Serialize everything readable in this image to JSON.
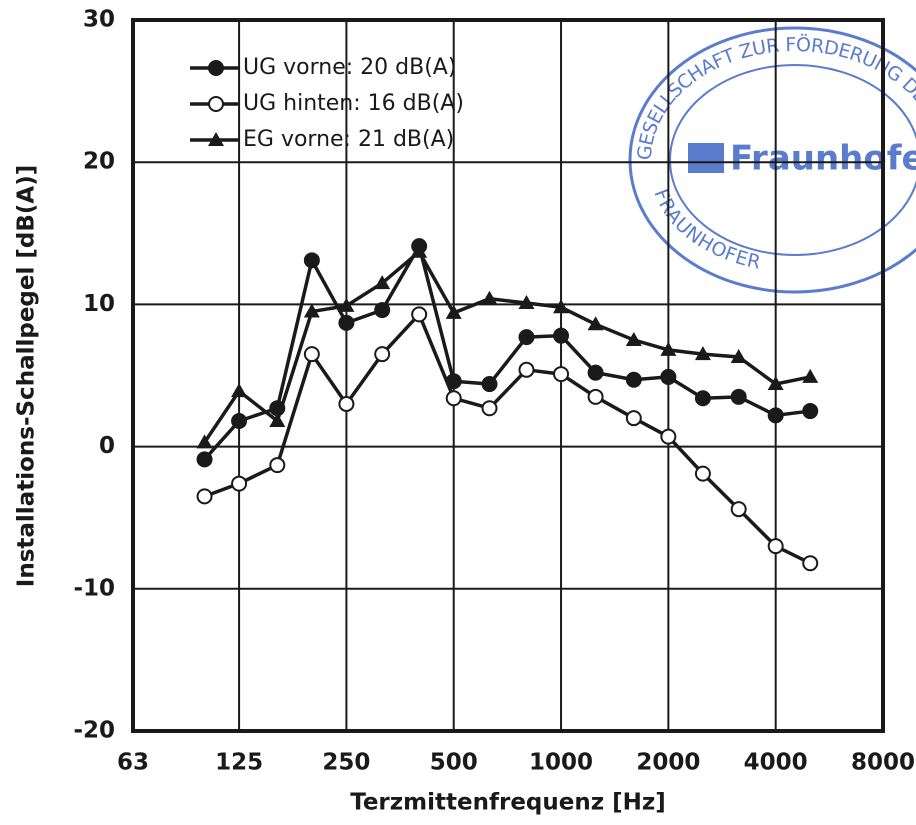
{
  "chart_data": {
    "type": "line",
    "x_label": "Terzmittenfrequenz [Hz]",
    "y_label": "Installations-Schallpegel [dB(A)]",
    "x": [
      100,
      125,
      160,
      200,
      250,
      315,
      400,
      500,
      630,
      800,
      1000,
      1250,
      1600,
      2000,
      2500,
      3150,
      4000,
      5000
    ],
    "series": [
      {
        "name": "UG vorne: 20 dB(A)",
        "color": "#1a1a1a",
        "marker": "circle",
        "values": [
          -0.9,
          1.8,
          2.7,
          13.1,
          8.7,
          9.6,
          14.1,
          4.6,
          4.4,
          7.7,
          7.8,
          5.2,
          4.7,
          4.9,
          3.4,
          3.5,
          2.2,
          2.5
        ]
      },
      {
        "name": "UG hinten: 16 dB(A)",
        "color": "#1a1a1a",
        "marker": "open-circle",
        "values": [
          -3.5,
          -2.6,
          -1.3,
          6.5,
          3.0,
          6.5,
          9.3,
          3.4,
          2.7,
          5.4,
          5.1,
          3.5,
          2.0,
          0.7,
          -1.9,
          -4.4,
          -7.0,
          -8.2
        ]
      },
      {
        "name": "EG vorne: 21 dB(A)",
        "color": "#1a1a1a",
        "marker": "triangle",
        "values": [
          0.3,
          3.9,
          1.8,
          9.5,
          9.9,
          11.5,
          13.7,
          9.4,
          10.4,
          10.1,
          9.8,
          8.6,
          7.5,
          6.8,
          6.5,
          6.3,
          4.4,
          4.9
        ]
      }
    ],
    "xlim": [
      63,
      8000
    ],
    "xticks": [
      63,
      125,
      250,
      500,
      1000,
      2000,
      4000,
      8000
    ],
    "xscale": "log",
    "ylim": [
      -20,
      30
    ],
    "yticks": [
      -20,
      -10,
      0,
      10,
      20,
      30
    ],
    "grid": true,
    "legend": "upper left"
  },
  "stamp": {
    "ring_top": "GESELLSCHAFT ZUR FÖRDERUNG DER ANG",
    "brand": "Fraunhofer",
    "ring_bottom": "FRAUNHOFER"
  }
}
